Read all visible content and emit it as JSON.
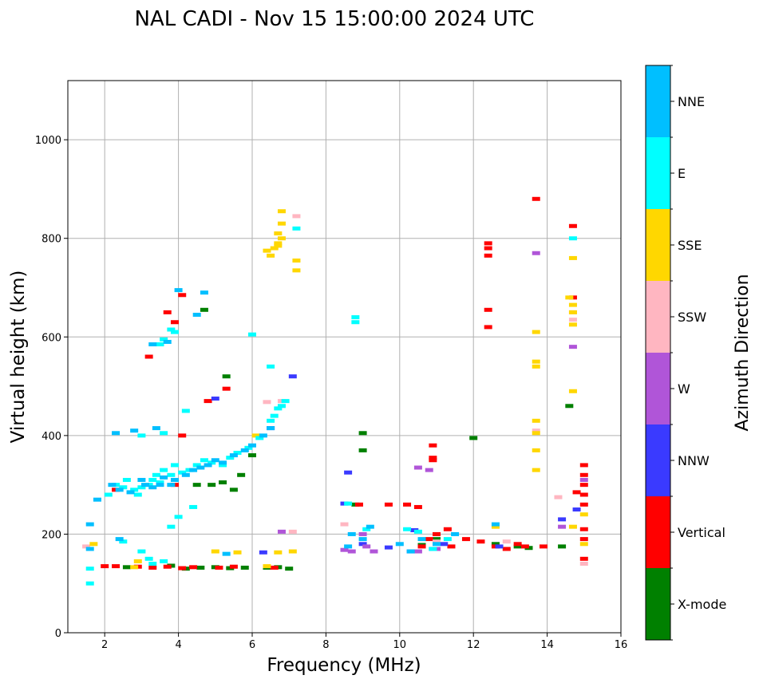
{
  "chart_data": {
    "type": "scatter",
    "title": "NAL CADI - Nov 15 15:00:00 2024 UTC",
    "xlabel": "Frequency (MHz)",
    "ylabel": "Virtual height (km)",
    "xlim": [
      1,
      16
    ],
    "ylim": [
      0,
      1120
    ],
    "xticks": [
      2,
      4,
      6,
      8,
      10,
      12,
      14,
      16
    ],
    "yticks": [
      0,
      200,
      400,
      600,
      800,
      1000
    ],
    "grid": true,
    "colorbar": {
      "label": "Azimuth Direction",
      "categories": [
        {
          "name": "X-mode",
          "color": "#008000"
        },
        {
          "name": "Vertical",
          "color": "#ff0000"
        },
        {
          "name": "NNW",
          "color": "#3a3aff"
        },
        {
          "name": "W",
          "color": "#b055d8"
        },
        {
          "name": "SSW",
          "color": "#ffb6c1"
        },
        {
          "name": "SSE",
          "color": "#ffd700"
        },
        {
          "name": "E",
          "color": "#00ffff"
        },
        {
          "name": "NNE",
          "color": "#00bfff"
        }
      ]
    },
    "series": [
      {
        "name": "X-mode",
        "points": [
          [
            4.2,
            130
          ],
          [
            4.6,
            132
          ],
          [
            5.0,
            133
          ],
          [
            5.4,
            131
          ],
          [
            5.8,
            132
          ],
          [
            6.4,
            132
          ],
          [
            6.7,
            133
          ],
          [
            7.0,
            130
          ],
          [
            2.6,
            133
          ],
          [
            3.8,
            136
          ],
          [
            4.9,
            300
          ],
          [
            5.2,
            305
          ],
          [
            5.5,
            290
          ],
          [
            5.7,
            320
          ],
          [
            12.0,
            395
          ],
          [
            13.2,
            175
          ],
          [
            13.5,
            172
          ],
          [
            12.6,
            180
          ],
          [
            10.6,
            178
          ],
          [
            9.0,
            405
          ],
          [
            9.0,
            370
          ],
          [
            5.3,
            520
          ],
          [
            4.7,
            655
          ],
          [
            4.5,
            300
          ],
          [
            14.4,
            175
          ],
          [
            14.6,
            460
          ],
          [
            8.8,
            260
          ],
          [
            6.0,
            360
          ],
          [
            11.0,
            190
          ]
        ]
      },
      {
        "name": "Vertical",
        "points": [
          [
            3.3,
            132
          ],
          [
            3.7,
            134
          ],
          [
            4.1,
            131
          ],
          [
            4.4,
            133
          ],
          [
            5.1,
            132
          ],
          [
            5.5,
            134
          ],
          [
            6.6,
            132
          ],
          [
            2.3,
            135
          ],
          [
            2.9,
            134
          ],
          [
            2.0,
            135
          ],
          [
            3.2,
            560
          ],
          [
            3.7,
            650
          ],
          [
            3.9,
            630
          ],
          [
            4.1,
            685
          ],
          [
            3.9,
            300
          ],
          [
            4.8,
            470
          ],
          [
            5.3,
            495
          ],
          [
            4.1,
            400
          ],
          [
            2.3,
            290
          ],
          [
            8.9,
            260
          ],
          [
            9.7,
            260
          ],
          [
            10.2,
            260
          ],
          [
            10.5,
            255
          ],
          [
            10.9,
            380
          ],
          [
            10.9,
            355
          ],
          [
            10.9,
            350
          ],
          [
            11.0,
            200
          ],
          [
            11.3,
            210
          ],
          [
            11.8,
            190
          ],
          [
            12.2,
            185
          ],
          [
            12.4,
            790
          ],
          [
            12.4,
            780
          ],
          [
            12.4,
            765
          ],
          [
            12.4,
            655
          ],
          [
            12.4,
            620
          ],
          [
            12.6,
            175
          ],
          [
            13.2,
            180
          ],
          [
            13.7,
            880
          ],
          [
            13.9,
            175
          ],
          [
            14.7,
            825
          ],
          [
            14.7,
            680
          ],
          [
            14.8,
            285
          ],
          [
            15.0,
            340
          ],
          [
            15.0,
            320
          ],
          [
            15.0,
            300
          ],
          [
            15.0,
            280
          ],
          [
            15.0,
            260
          ],
          [
            15.0,
            210
          ],
          [
            15.0,
            190
          ],
          [
            15.0,
            150
          ],
          [
            10.6,
            175
          ],
          [
            10.8,
            190
          ],
          [
            11.4,
            175
          ],
          [
            12.9,
            170
          ],
          [
            13.4,
            175
          ]
        ]
      },
      {
        "name": "NNW",
        "points": [
          [
            8.6,
            325
          ],
          [
            8.5,
            262
          ],
          [
            9.0,
            180
          ],
          [
            9.7,
            173
          ],
          [
            10.4,
            208
          ],
          [
            10.9,
            170
          ],
          [
            6.3,
            163
          ],
          [
            5.0,
            475
          ],
          [
            7.1,
            520
          ],
          [
            14.4,
            230
          ],
          [
            14.8,
            250
          ],
          [
            6.5,
            415
          ],
          [
            10.3,
            165
          ],
          [
            11.2,
            180
          ],
          [
            12.7,
            175
          ]
        ]
      },
      {
        "name": "W",
        "points": [
          [
            8.5,
            168
          ],
          [
            8.7,
            165
          ],
          [
            9.1,
            175
          ],
          [
            9.0,
            200
          ],
          [
            6.8,
            205
          ],
          [
            10.5,
            335
          ],
          [
            10.8,
            330
          ],
          [
            13.7,
            770
          ],
          [
            14.7,
            580
          ],
          [
            14.4,
            215
          ],
          [
            15.0,
            310
          ],
          [
            9.3,
            165
          ],
          [
            10.5,
            165
          ],
          [
            11.0,
            170
          ]
        ]
      },
      {
        "name": "SSW",
        "points": [
          [
            8.5,
            220
          ],
          [
            7.1,
            205
          ],
          [
            6.4,
            468
          ],
          [
            6.8,
            470
          ],
          [
            14.3,
            275
          ],
          [
            14.7,
            650
          ],
          [
            14.7,
            635
          ],
          [
            15.0,
            140
          ],
          [
            1.5,
            175
          ],
          [
            13.7,
            410
          ],
          [
            12.9,
            185
          ],
          [
            11.0,
            185
          ],
          [
            7.2,
            845
          ]
        ]
      },
      {
        "name": "SSE",
        "points": [
          [
            6.6,
            780
          ],
          [
            6.7,
            790
          ],
          [
            6.8,
            800
          ],
          [
            6.7,
            810
          ],
          [
            6.8,
            830
          ],
          [
            6.8,
            855
          ],
          [
            6.7,
            785
          ],
          [
            6.4,
            775
          ],
          [
            6.5,
            765
          ],
          [
            7.2,
            755
          ],
          [
            7.2,
            735
          ],
          [
            13.7,
            610
          ],
          [
            13.7,
            550
          ],
          [
            13.7,
            540
          ],
          [
            13.7,
            430
          ],
          [
            13.7,
            405
          ],
          [
            13.7,
            370
          ],
          [
            13.7,
            330
          ],
          [
            14.7,
            760
          ],
          [
            14.6,
            680
          ],
          [
            14.7,
            665
          ],
          [
            14.7,
            650
          ],
          [
            14.7,
            625
          ],
          [
            14.7,
            490
          ],
          [
            14.7,
            215
          ],
          [
            15.0,
            240
          ],
          [
            15.0,
            180
          ],
          [
            12.6,
            215
          ],
          [
            6.4,
            135
          ],
          [
            6.7,
            163
          ],
          [
            7.1,
            165
          ],
          [
            6.1,
            400
          ],
          [
            5.0,
            165
          ],
          [
            5.6,
            163
          ],
          [
            2.8,
            133
          ],
          [
            2.9,
            145
          ],
          [
            1.7,
            180
          ]
        ]
      },
      {
        "name": "E",
        "points": [
          [
            2.1,
            280
          ],
          [
            2.3,
            300
          ],
          [
            2.5,
            295
          ],
          [
            2.6,
            310
          ],
          [
            2.8,
            290
          ],
          [
            2.9,
            280
          ],
          [
            3.0,
            295
          ],
          [
            3.2,
            300
          ],
          [
            3.3,
            310
          ],
          [
            3.4,
            320
          ],
          [
            3.5,
            305
          ],
          [
            3.6,
            330
          ],
          [
            3.8,
            320
          ],
          [
            3.9,
            340
          ],
          [
            4.1,
            325
          ],
          [
            4.3,
            330
          ],
          [
            4.5,
            340
          ],
          [
            4.7,
            350
          ],
          [
            4.9,
            345
          ],
          [
            5.2,
            340
          ],
          [
            5.4,
            355
          ],
          [
            5.6,
            365
          ],
          [
            5.9,
            375
          ],
          [
            6.2,
            395
          ],
          [
            6.5,
            430
          ],
          [
            6.6,
            440
          ],
          [
            6.7,
            455
          ],
          [
            6.8,
            460
          ],
          [
            6.9,
            470
          ],
          [
            6.5,
            540
          ],
          [
            6.0,
            605
          ],
          [
            3.9,
            610
          ],
          [
            3.6,
            595
          ],
          [
            3.5,
            585
          ],
          [
            3.8,
            615
          ],
          [
            4.2,
            450
          ],
          [
            3.0,
            400
          ],
          [
            3.6,
            405
          ],
          [
            4.4,
            255
          ],
          [
            3.3,
            140
          ],
          [
            3.6,
            145
          ],
          [
            3.0,
            165
          ],
          [
            3.2,
            150
          ],
          [
            1.6,
            100
          ],
          [
            1.6,
            130
          ],
          [
            2.5,
            185
          ],
          [
            3.8,
            215
          ],
          [
            4.0,
            235
          ],
          [
            8.8,
            640
          ],
          [
            8.8,
            630
          ],
          [
            8.6,
            262
          ],
          [
            9.1,
            210
          ],
          [
            10.2,
            210
          ],
          [
            10.5,
            205
          ],
          [
            10.9,
            170
          ],
          [
            11.3,
            190
          ],
          [
            14.7,
            800
          ],
          [
            7.2,
            820
          ]
        ]
      },
      {
        "name": "NNE",
        "points": [
          [
            2.2,
            300
          ],
          [
            2.4,
            290
          ],
          [
            2.7,
            285
          ],
          [
            3.0,
            310
          ],
          [
            3.1,
            300
          ],
          [
            3.3,
            295
          ],
          [
            3.5,
            300
          ],
          [
            3.6,
            315
          ],
          [
            3.8,
            300
          ],
          [
            3.9,
            310
          ],
          [
            4.2,
            320
          ],
          [
            4.4,
            330
          ],
          [
            4.6,
            335
          ],
          [
            4.8,
            340
          ],
          [
            5.0,
            350
          ],
          [
            5.2,
            345
          ],
          [
            5.5,
            360
          ],
          [
            5.8,
            370
          ],
          [
            6.0,
            380
          ],
          [
            6.3,
            400
          ],
          [
            6.5,
            415
          ],
          [
            4.0,
            695
          ],
          [
            4.5,
            645
          ],
          [
            4.7,
            690
          ],
          [
            3.7,
            590
          ],
          [
            3.3,
            585
          ],
          [
            2.3,
            405
          ],
          [
            2.8,
            410
          ],
          [
            2.4,
            190
          ],
          [
            1.6,
            220
          ],
          [
            1.6,
            170
          ],
          [
            1.8,
            270
          ],
          [
            3.4,
            415
          ],
          [
            8.6,
            175
          ],
          [
            8.7,
            200
          ],
          [
            9.0,
            190
          ],
          [
            9.2,
            215
          ],
          [
            10.0,
            180
          ],
          [
            10.3,
            165
          ],
          [
            10.6,
            190
          ],
          [
            11.0,
            180
          ],
          [
            11.5,
            200
          ],
          [
            12.6,
            220
          ],
          [
            5.3,
            160
          ]
        ]
      }
    ]
  }
}
